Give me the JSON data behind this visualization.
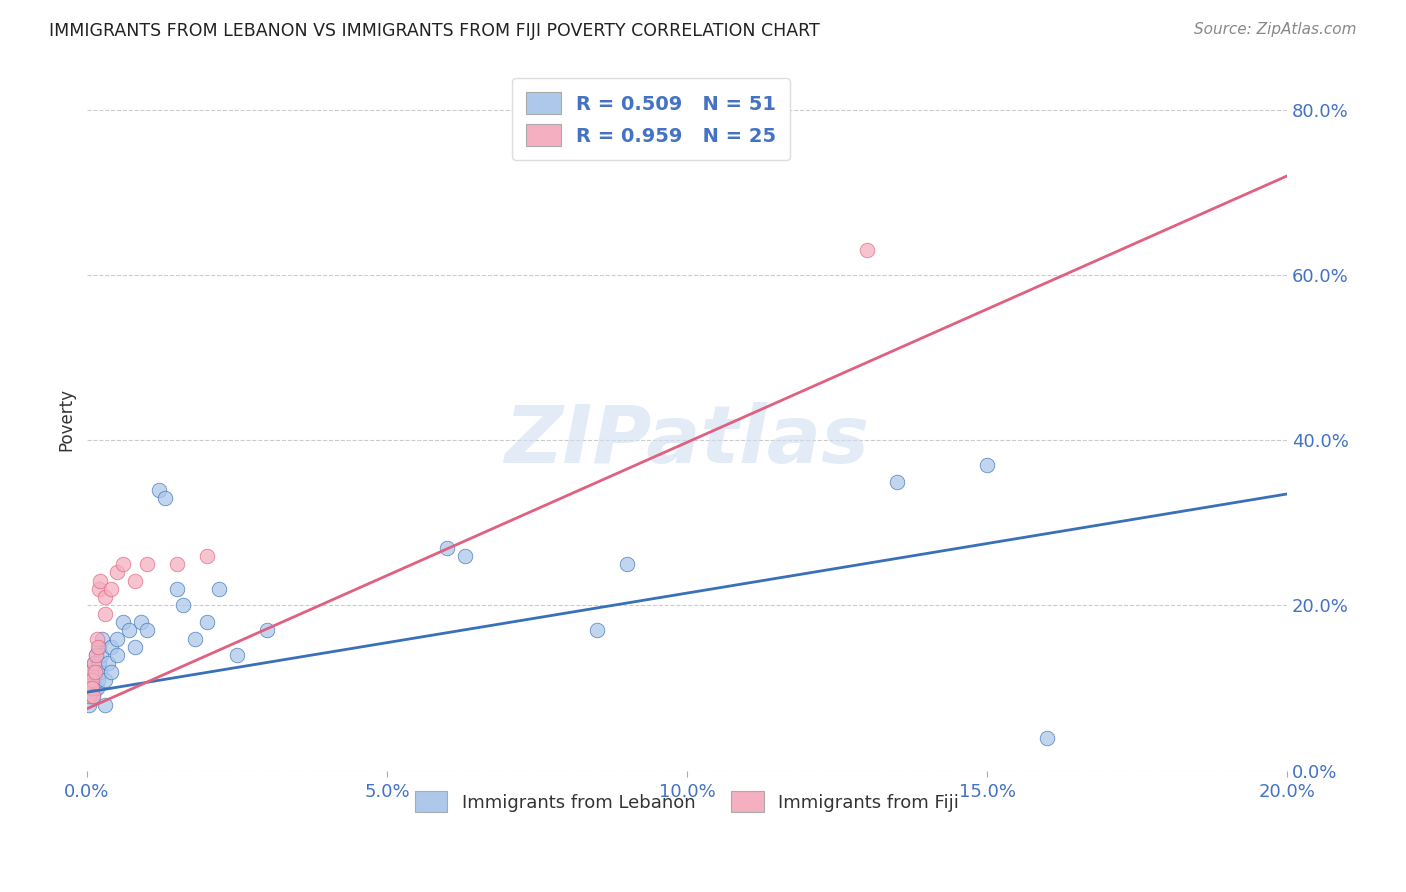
{
  "title": "IMMIGRANTS FROM LEBANON VS IMMIGRANTS FROM FIJI POVERTY CORRELATION CHART",
  "source": "Source: ZipAtlas.com",
  "ylabel": "Poverty",
  "watermark": "ZIPatlas",
  "xlim": [
    0.0,
    0.2
  ],
  "ylim": [
    0.0,
    0.85
  ],
  "xticks": [
    0.0,
    0.05,
    0.1,
    0.15,
    0.2
  ],
  "yticks": [
    0.0,
    0.2,
    0.4,
    0.6,
    0.8
  ],
  "lebanon_R": 0.509,
  "lebanon_N": 51,
  "fiji_R": 0.959,
  "fiji_N": 25,
  "lebanon_color": "#adc8ea",
  "fiji_color": "#f4afc0",
  "lebanon_line_color": "#3a70b8",
  "fiji_line_color": "#e06080",
  "lebanon_line_x0": 0.0,
  "lebanon_line_y0": 0.095,
  "lebanon_line_x1": 0.2,
  "lebanon_line_y1": 0.335,
  "fiji_line_x0": 0.0,
  "fiji_line_y0": 0.075,
  "fiji_line_x1": 0.2,
  "fiji_line_y1": 0.72,
  "lebanon_x": [
    0.0002,
    0.0003,
    0.0005,
    0.0005,
    0.0006,
    0.0007,
    0.0008,
    0.0009,
    0.001,
    0.001,
    0.0012,
    0.0013,
    0.0014,
    0.0015,
    0.0016,
    0.0017,
    0.0018,
    0.0019,
    0.002,
    0.002,
    0.0022,
    0.0023,
    0.0025,
    0.003,
    0.003,
    0.0035,
    0.004,
    0.004,
    0.005,
    0.005,
    0.006,
    0.007,
    0.008,
    0.009,
    0.01,
    0.012,
    0.013,
    0.015,
    0.016,
    0.018,
    0.02,
    0.022,
    0.025,
    0.03,
    0.06,
    0.063,
    0.085,
    0.09,
    0.135,
    0.15,
    0.16
  ],
  "lebanon_y": [
    0.1,
    0.08,
    0.11,
    0.09,
    0.1,
    0.12,
    0.09,
    0.1,
    0.11,
    0.09,
    0.13,
    0.1,
    0.11,
    0.14,
    0.12,
    0.1,
    0.13,
    0.11,
    0.15,
    0.13,
    0.12,
    0.14,
    0.16,
    0.11,
    0.08,
    0.13,
    0.12,
    0.15,
    0.14,
    0.16,
    0.18,
    0.17,
    0.15,
    0.18,
    0.17,
    0.34,
    0.33,
    0.22,
    0.2,
    0.16,
    0.18,
    0.22,
    0.14,
    0.17,
    0.27,
    0.26,
    0.17,
    0.25,
    0.35,
    0.37,
    0.04
  ],
  "fiji_x": [
    0.0002,
    0.0003,
    0.0005,
    0.0006,
    0.0007,
    0.0008,
    0.0009,
    0.001,
    0.0012,
    0.0013,
    0.0015,
    0.0016,
    0.0018,
    0.002,
    0.0022,
    0.003,
    0.003,
    0.004,
    0.005,
    0.006,
    0.008,
    0.01,
    0.015,
    0.02,
    0.13
  ],
  "fiji_y": [
    0.1,
    0.09,
    0.11,
    0.1,
    0.12,
    0.11,
    0.1,
    0.09,
    0.13,
    0.12,
    0.14,
    0.16,
    0.15,
    0.22,
    0.23,
    0.21,
    0.19,
    0.22,
    0.24,
    0.25,
    0.23,
    0.25,
    0.25,
    0.26,
    0.63
  ],
  "legend_leb_label": "Immigrants from Lebanon",
  "legend_fiji_label": "Immigrants from Fiji",
  "background_color": "#ffffff",
  "grid_color": "#cccccc"
}
